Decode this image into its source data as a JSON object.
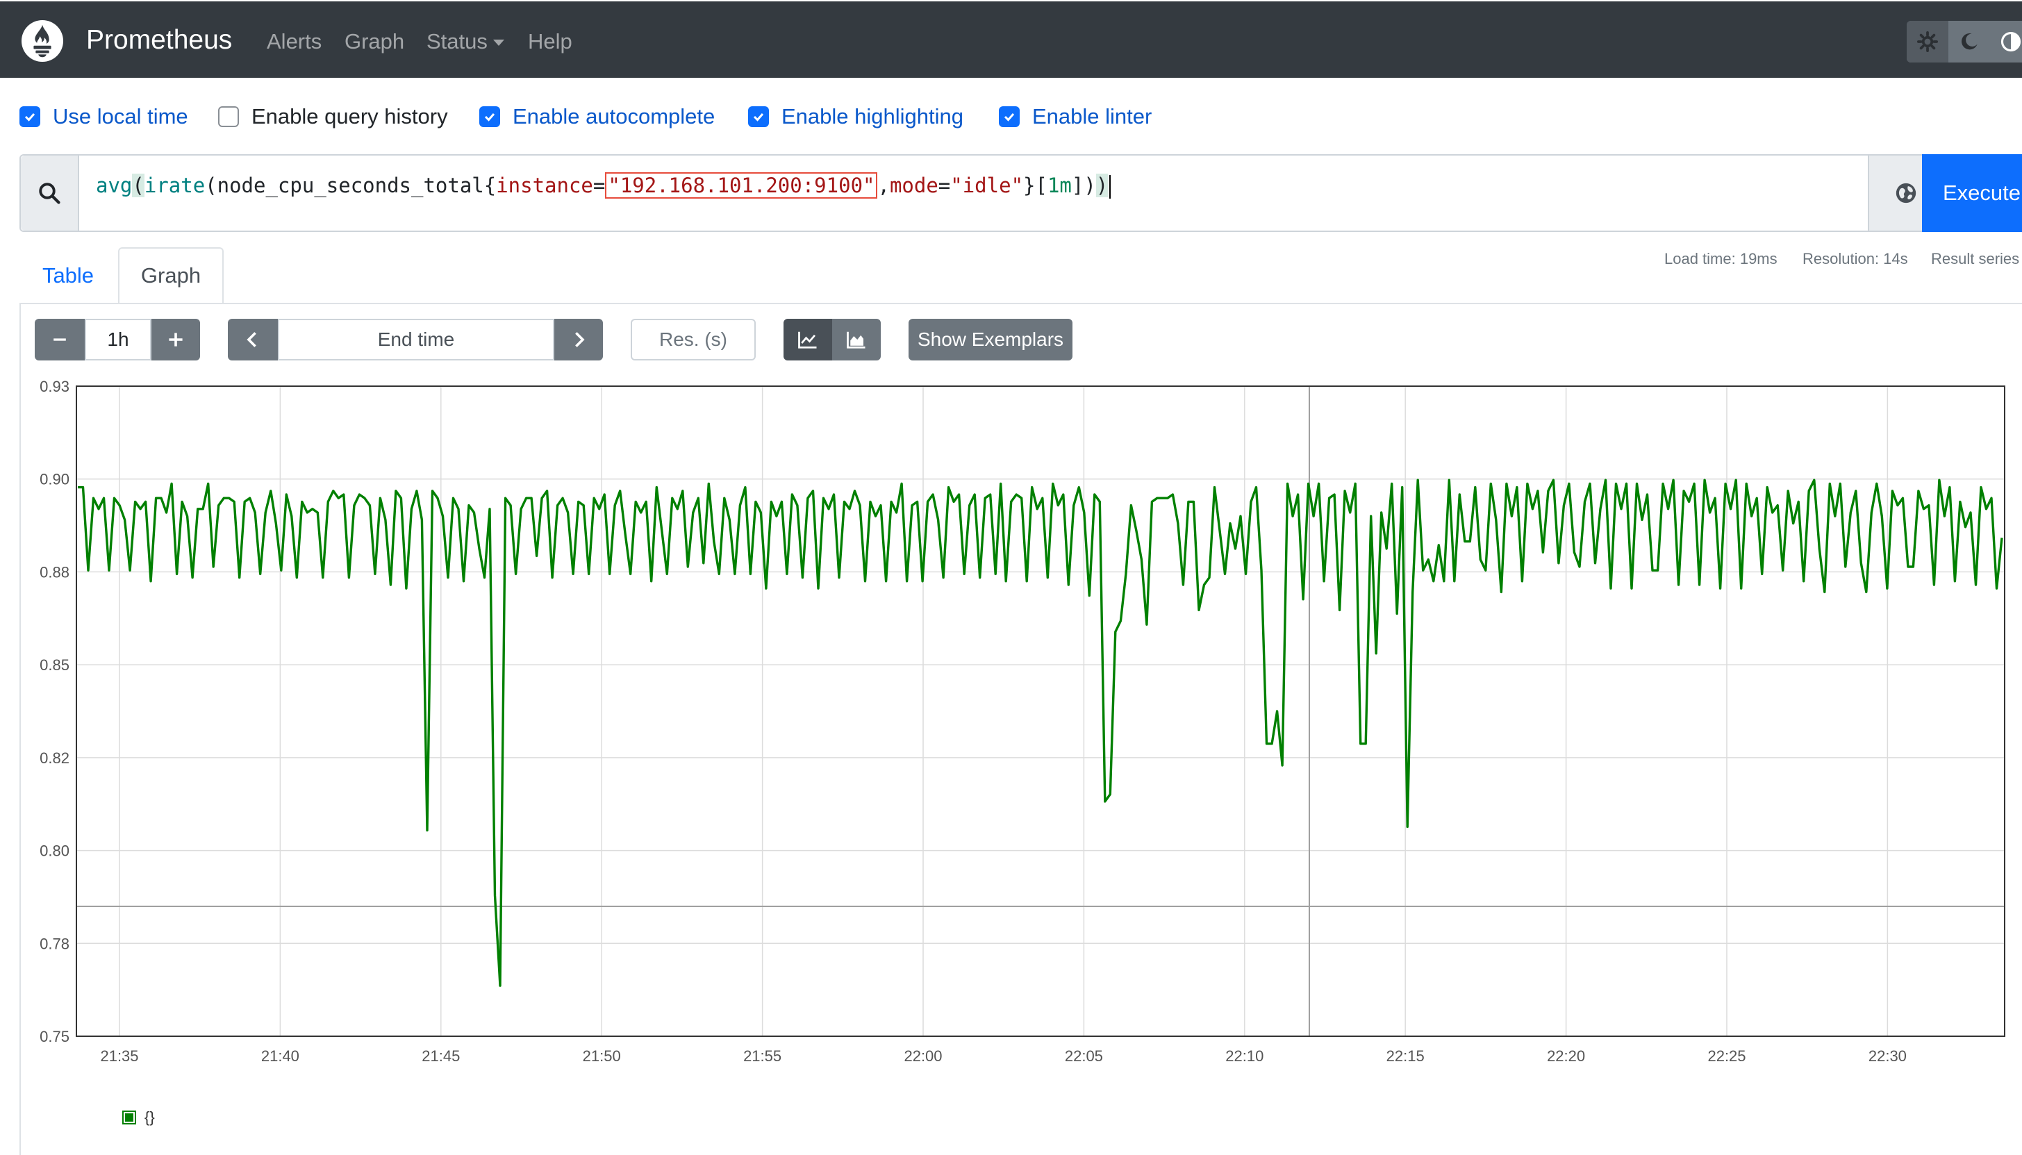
{
  "navbar": {
    "brand": "Prometheus",
    "links": [
      "Alerts",
      "Graph",
      "Status",
      "Help"
    ]
  },
  "options": [
    {
      "label": "Use local time",
      "checked": true
    },
    {
      "label": "Enable query history",
      "checked": false
    },
    {
      "label": "Enable autocomplete",
      "checked": true
    },
    {
      "label": "Enable highlighting",
      "checked": true
    },
    {
      "label": "Enable linter",
      "checked": true
    }
  ],
  "query": {
    "fn1": "avg",
    "fn2": "irate",
    "metric": "node_cpu_seconds_total",
    "label1": "instance",
    "value1": "\"192.168.101.200:9100\"",
    "label2": "mode",
    "value2": "\"idle\"",
    "range": "1m",
    "execute_label": "Execute"
  },
  "tabs": [
    "Table",
    "Graph"
  ],
  "stats": {
    "load_time": "Load time: 19ms",
    "resolution": "Resolution: 14s",
    "result_series": "Result series"
  },
  "controls": {
    "range": "1h",
    "end_time_placeholder": "End time",
    "res_placeholder": "Res. (s)",
    "show_exemplars": "Show Exemplars"
  },
  "chart_data": {
    "type": "line",
    "x_ticks": [
      "21:35",
      "21:40",
      "21:45",
      "21:50",
      "21:55",
      "22:00",
      "22:05",
      "22:10",
      "22:15",
      "22:20",
      "22:25",
      "22:30"
    ],
    "y_ticks": [
      "0.93",
      "0.90",
      "0.88",
      "0.85",
      "0.82",
      "0.80",
      "0.78",
      "0.75"
    ],
    "ylim": [
      0.75,
      0.93
    ],
    "legend": "{}",
    "series_color": "#008000",
    "series": [
      {
        "name": "{}",
        "values": [
          0.902,
          0.902,
          0.879,
          0.899,
          0.896,
          0.899,
          0.879,
          0.899,
          0.897,
          0.893,
          0.879,
          0.898,
          0.896,
          0.898,
          0.876,
          0.899,
          0.899,
          0.895,
          0.903,
          0.878,
          0.898,
          0.894,
          0.877,
          0.896,
          0.896,
          0.903,
          0.88,
          0.897,
          0.899,
          0.899,
          0.898,
          0.877,
          0.898,
          0.899,
          0.895,
          0.878,
          0.895,
          0.901,
          0.892,
          0.879,
          0.9,
          0.894,
          0.877,
          0.898,
          0.895,
          0.896,
          0.895,
          0.877,
          0.898,
          0.901,
          0.899,
          0.9,
          0.877,
          0.897,
          0.9,
          0.899,
          0.897,
          0.878,
          0.899,
          0.893,
          0.875,
          0.901,
          0.899,
          0.874,
          0.896,
          0.901,
          0.893,
          0.807,
          0.901,
          0.899,
          0.894,
          0.877,
          0.899,
          0.896,
          0.876,
          0.897,
          0.895,
          0.885,
          0.877,
          0.896,
          0.789,
          0.764,
          0.899,
          0.897,
          0.878,
          0.896,
          0.899,
          0.899,
          0.883,
          0.899,
          0.901,
          0.877,
          0.897,
          0.899,
          0.895,
          0.878,
          0.898,
          0.897,
          0.878,
          0.899,
          0.896,
          0.9,
          0.878,
          0.897,
          0.901,
          0.889,
          0.878,
          0.898,
          0.895,
          0.898,
          0.876,
          0.902,
          0.89,
          0.878,
          0.899,
          0.896,
          0.901,
          0.88,
          0.895,
          0.899,
          0.881,
          0.903,
          0.887,
          0.878,
          0.899,
          0.893,
          0.878,
          0.897,
          0.902,
          0.878,
          0.898,
          0.895,
          0.874,
          0.898,
          0.894,
          0.898,
          0.878,
          0.9,
          0.897,
          0.877,
          0.899,
          0.901,
          0.874,
          0.899,
          0.896,
          0.9,
          0.877,
          0.898,
          0.896,
          0.901,
          0.897,
          0.876,
          0.898,
          0.894,
          0.897,
          0.876,
          0.898,
          0.895,
          0.903,
          0.876,
          0.897,
          0.898,
          0.876,
          0.898,
          0.9,
          0.893,
          0.877,
          0.902,
          0.898,
          0.9,
          0.878,
          0.897,
          0.9,
          0.877,
          0.899,
          0.9,
          0.878,
          0.903,
          0.876,
          0.898,
          0.9,
          0.899,
          0.876,
          0.902,
          0.896,
          0.899,
          0.877,
          0.903,
          0.897,
          0.9,
          0.875,
          0.897,
          0.902,
          0.895,
          0.872,
          0.9,
          0.898,
          0.815,
          0.817,
          0.862,
          0.865,
          0.878,
          0.897,
          0.89,
          0.882,
          0.864,
          0.898,
          0.899,
          0.899,
          0.899,
          0.9,
          0.892,
          0.875,
          0.898,
          0.898,
          0.868,
          0.875,
          0.877,
          0.902,
          0.89,
          0.878,
          0.892,
          0.885,
          0.894,
          0.878,
          0.898,
          0.902,
          0.879,
          0.831,
          0.831,
          0.84,
          0.825,
          0.903,
          0.894,
          0.9,
          0.871,
          0.903,
          0.894,
          0.903,
          0.876,
          0.899,
          0.9,
          0.868,
          0.901,
          0.895,
          0.903,
          0.831,
          0.831,
          0.894,
          0.856,
          0.895,
          0.885,
          0.903,
          0.867,
          0.902,
          0.808,
          0.873,
          0.904,
          0.879,
          0.882,
          0.876,
          0.886,
          0.876,
          0.904,
          0.876,
          0.9,
          0.887,
          0.887,
          0.902,
          0.882,
          0.879,
          0.903,
          0.893,
          0.873,
          0.903,
          0.894,
          0.902,
          0.876,
          0.903,
          0.896,
          0.901,
          0.884,
          0.901,
          0.904,
          0.881,
          0.897,
          0.903,
          0.884,
          0.88,
          0.898,
          0.903,
          0.881,
          0.896,
          0.904,
          0.874,
          0.903,
          0.896,
          0.903,
          0.874,
          0.903,
          0.893,
          0.9,
          0.879,
          0.879,
          0.903,
          0.896,
          0.904,
          0.875,
          0.901,
          0.898,
          0.903,
          0.875,
          0.904,
          0.895,
          0.899,
          0.874,
          0.903,
          0.896,
          0.904,
          0.874,
          0.903,
          0.894,
          0.899,
          0.878,
          0.902,
          0.895,
          0.897,
          0.879,
          0.901,
          0.892,
          0.898,
          0.876,
          0.901,
          0.904,
          0.885,
          0.873,
          0.903,
          0.894,
          0.903,
          0.88,
          0.895,
          0.901,
          0.881,
          0.873,
          0.895,
          0.903,
          0.894,
          0.874,
          0.901,
          0.897,
          0.899,
          0.88,
          0.88,
          0.901,
          0.896,
          0.897,
          0.875,
          0.904,
          0.894,
          0.902,
          0.876,
          0.898,
          0.891,
          0.895,
          0.875,
          0.902,
          0.896,
          0.899,
          0.874,
          0.888
        ]
      }
    ]
  }
}
